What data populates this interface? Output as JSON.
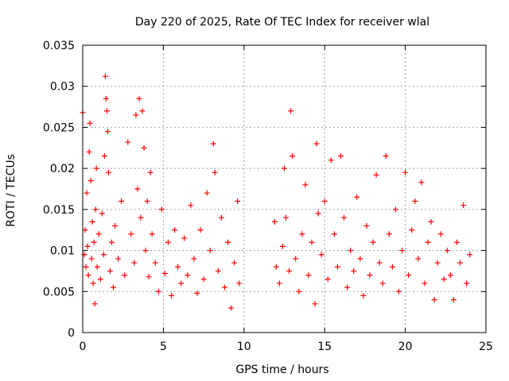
{
  "chart_data": {
    "type": "scatter",
    "title": "Day 220 of 2025, Rate Of TEC Index for receiver wlal",
    "xlabel": "GPS time / hours",
    "ylabel": "ROTI / TECUs",
    "xlim": [
      0,
      25
    ],
    "ylim": [
      0,
      0.035
    ],
    "xticks": [
      0,
      5,
      10,
      15,
      20,
      25
    ],
    "xtick_labels": [
      "0",
      "5",
      "10",
      "15",
      "20",
      "25"
    ],
    "yticks": [
      0,
      0.005,
      0.01,
      0.015,
      0.02,
      0.025,
      0.03,
      0.035
    ],
    "ytick_labels": [
      "0",
      "0.005",
      "0.01",
      "0.015",
      "0.02",
      "0.025",
      "0.03",
      "0.035"
    ],
    "grid": true,
    "marker": "+",
    "series_color": "#ff0000",
    "data_gap_hours": [
      9.8,
      11.8
    ],
    "series": [
      {
        "name": "ROTI",
        "points": [
          [
            0.0,
            0.0268
          ],
          [
            0.1,
            0.0095
          ],
          [
            0.15,
            0.0125
          ],
          [
            0.2,
            0.008
          ],
          [
            0.25,
            0.017
          ],
          [
            0.3,
            0.0105
          ],
          [
            0.35,
            0.007
          ],
          [
            0.4,
            0.022
          ],
          [
            0.45,
            0.0255
          ],
          [
            0.5,
            0.0185
          ],
          [
            0.55,
            0.009
          ],
          [
            0.6,
            0.0135
          ],
          [
            0.65,
            0.006
          ],
          [
            0.7,
            0.011
          ],
          [
            0.75,
            0.0035
          ],
          [
            0.8,
            0.015
          ],
          [
            0.85,
            0.02
          ],
          [
            0.9,
            0.008
          ],
          [
            1.0,
            0.012
          ],
          [
            1.1,
            0.0065
          ],
          [
            1.2,
            0.0145
          ],
          [
            1.3,
            0.0095
          ],
          [
            1.35,
            0.0215
          ],
          [
            1.4,
            0.0312
          ],
          [
            1.45,
            0.0285
          ],
          [
            1.5,
            0.027
          ],
          [
            1.55,
            0.0245
          ],
          [
            1.6,
            0.0195
          ],
          [
            1.7,
            0.0075
          ],
          [
            1.8,
            0.011
          ],
          [
            1.9,
            0.0055
          ],
          [
            2.0,
            0.013
          ],
          [
            2.2,
            0.009
          ],
          [
            2.4,
            0.016
          ],
          [
            2.6,
            0.007
          ],
          [
            2.8,
            0.0232
          ],
          [
            3.0,
            0.012
          ],
          [
            3.2,
            0.0085
          ],
          [
            3.3,
            0.0265
          ],
          [
            3.4,
            0.0175
          ],
          [
            3.5,
            0.0285
          ],
          [
            3.6,
            0.014
          ],
          [
            3.7,
            0.027
          ],
          [
            3.8,
            0.0225
          ],
          [
            3.9,
            0.01
          ],
          [
            4.0,
            0.016
          ],
          [
            4.1,
            0.0068
          ],
          [
            4.2,
            0.0195
          ],
          [
            4.3,
            0.012
          ],
          [
            4.5,
            0.0085
          ],
          [
            4.7,
            0.005
          ],
          [
            4.9,
            0.015
          ],
          [
            5.1,
            0.0072
          ],
          [
            5.3,
            0.011
          ],
          [
            5.5,
            0.0045
          ],
          [
            5.7,
            0.0125
          ],
          [
            5.9,
            0.008
          ],
          [
            6.1,
            0.006
          ],
          [
            6.3,
            0.0115
          ],
          [
            6.5,
            0.007
          ],
          [
            6.7,
            0.0155
          ],
          [
            6.9,
            0.009
          ],
          [
            7.1,
            0.0048
          ],
          [
            7.3,
            0.0125
          ],
          [
            7.5,
            0.0065
          ],
          [
            7.7,
            0.017
          ],
          [
            7.9,
            0.01
          ],
          [
            8.1,
            0.023
          ],
          [
            8.2,
            0.0195
          ],
          [
            8.4,
            0.0075
          ],
          [
            8.6,
            0.014
          ],
          [
            8.8,
            0.0055
          ],
          [
            9.0,
            0.011
          ],
          [
            9.2,
            0.003
          ],
          [
            9.4,
            0.0085
          ],
          [
            9.6,
            0.016
          ],
          [
            9.7,
            0.006
          ],
          [
            11.9,
            0.0135
          ],
          [
            12.0,
            0.008
          ],
          [
            12.2,
            0.006
          ],
          [
            12.4,
            0.0105
          ],
          [
            12.5,
            0.02
          ],
          [
            12.6,
            0.014
          ],
          [
            12.8,
            0.0075
          ],
          [
            12.9,
            0.027
          ],
          [
            13.0,
            0.0215
          ],
          [
            13.2,
            0.009
          ],
          [
            13.4,
            0.005
          ],
          [
            13.6,
            0.012
          ],
          [
            13.8,
            0.018
          ],
          [
            14.0,
            0.007
          ],
          [
            14.2,
            0.011
          ],
          [
            14.4,
            0.0035
          ],
          [
            14.5,
            0.023
          ],
          [
            14.6,
            0.0145
          ],
          [
            14.8,
            0.0095
          ],
          [
            15.0,
            0.016
          ],
          [
            15.2,
            0.0065
          ],
          [
            15.4,
            0.021
          ],
          [
            15.6,
            0.012
          ],
          [
            15.8,
            0.008
          ],
          [
            16.0,
            0.0215
          ],
          [
            16.2,
            0.014
          ],
          [
            16.4,
            0.0055
          ],
          [
            16.6,
            0.01
          ],
          [
            16.8,
            0.0075
          ],
          [
            17.0,
            0.0165
          ],
          [
            17.2,
            0.009
          ],
          [
            17.4,
            0.0045
          ],
          [
            17.6,
            0.013
          ],
          [
            17.8,
            0.007
          ],
          [
            18.0,
            0.011
          ],
          [
            18.2,
            0.0192
          ],
          [
            18.4,
            0.0085
          ],
          [
            18.6,
            0.006
          ],
          [
            18.8,
            0.0215
          ],
          [
            19.0,
            0.012
          ],
          [
            19.2,
            0.008
          ],
          [
            19.4,
            0.015
          ],
          [
            19.6,
            0.005
          ],
          [
            19.8,
            0.01
          ],
          [
            20.0,
            0.0195
          ],
          [
            20.2,
            0.007
          ],
          [
            20.4,
            0.0125
          ],
          [
            20.6,
            0.016
          ],
          [
            20.8,
            0.009
          ],
          [
            21.0,
            0.0183
          ],
          [
            21.2,
            0.006
          ],
          [
            21.4,
            0.011
          ],
          [
            21.6,
            0.0135
          ],
          [
            21.8,
            0.004
          ],
          [
            22.0,
            0.0085
          ],
          [
            22.2,
            0.012
          ],
          [
            22.4,
            0.0065
          ],
          [
            22.6,
            0.01
          ],
          [
            22.8,
            0.007
          ],
          [
            23.0,
            0.004
          ],
          [
            23.2,
            0.011
          ],
          [
            23.4,
            0.0085
          ],
          [
            23.6,
            0.0155
          ],
          [
            23.8,
            0.006
          ],
          [
            24.0,
            0.0095
          ]
        ]
      }
    ]
  }
}
